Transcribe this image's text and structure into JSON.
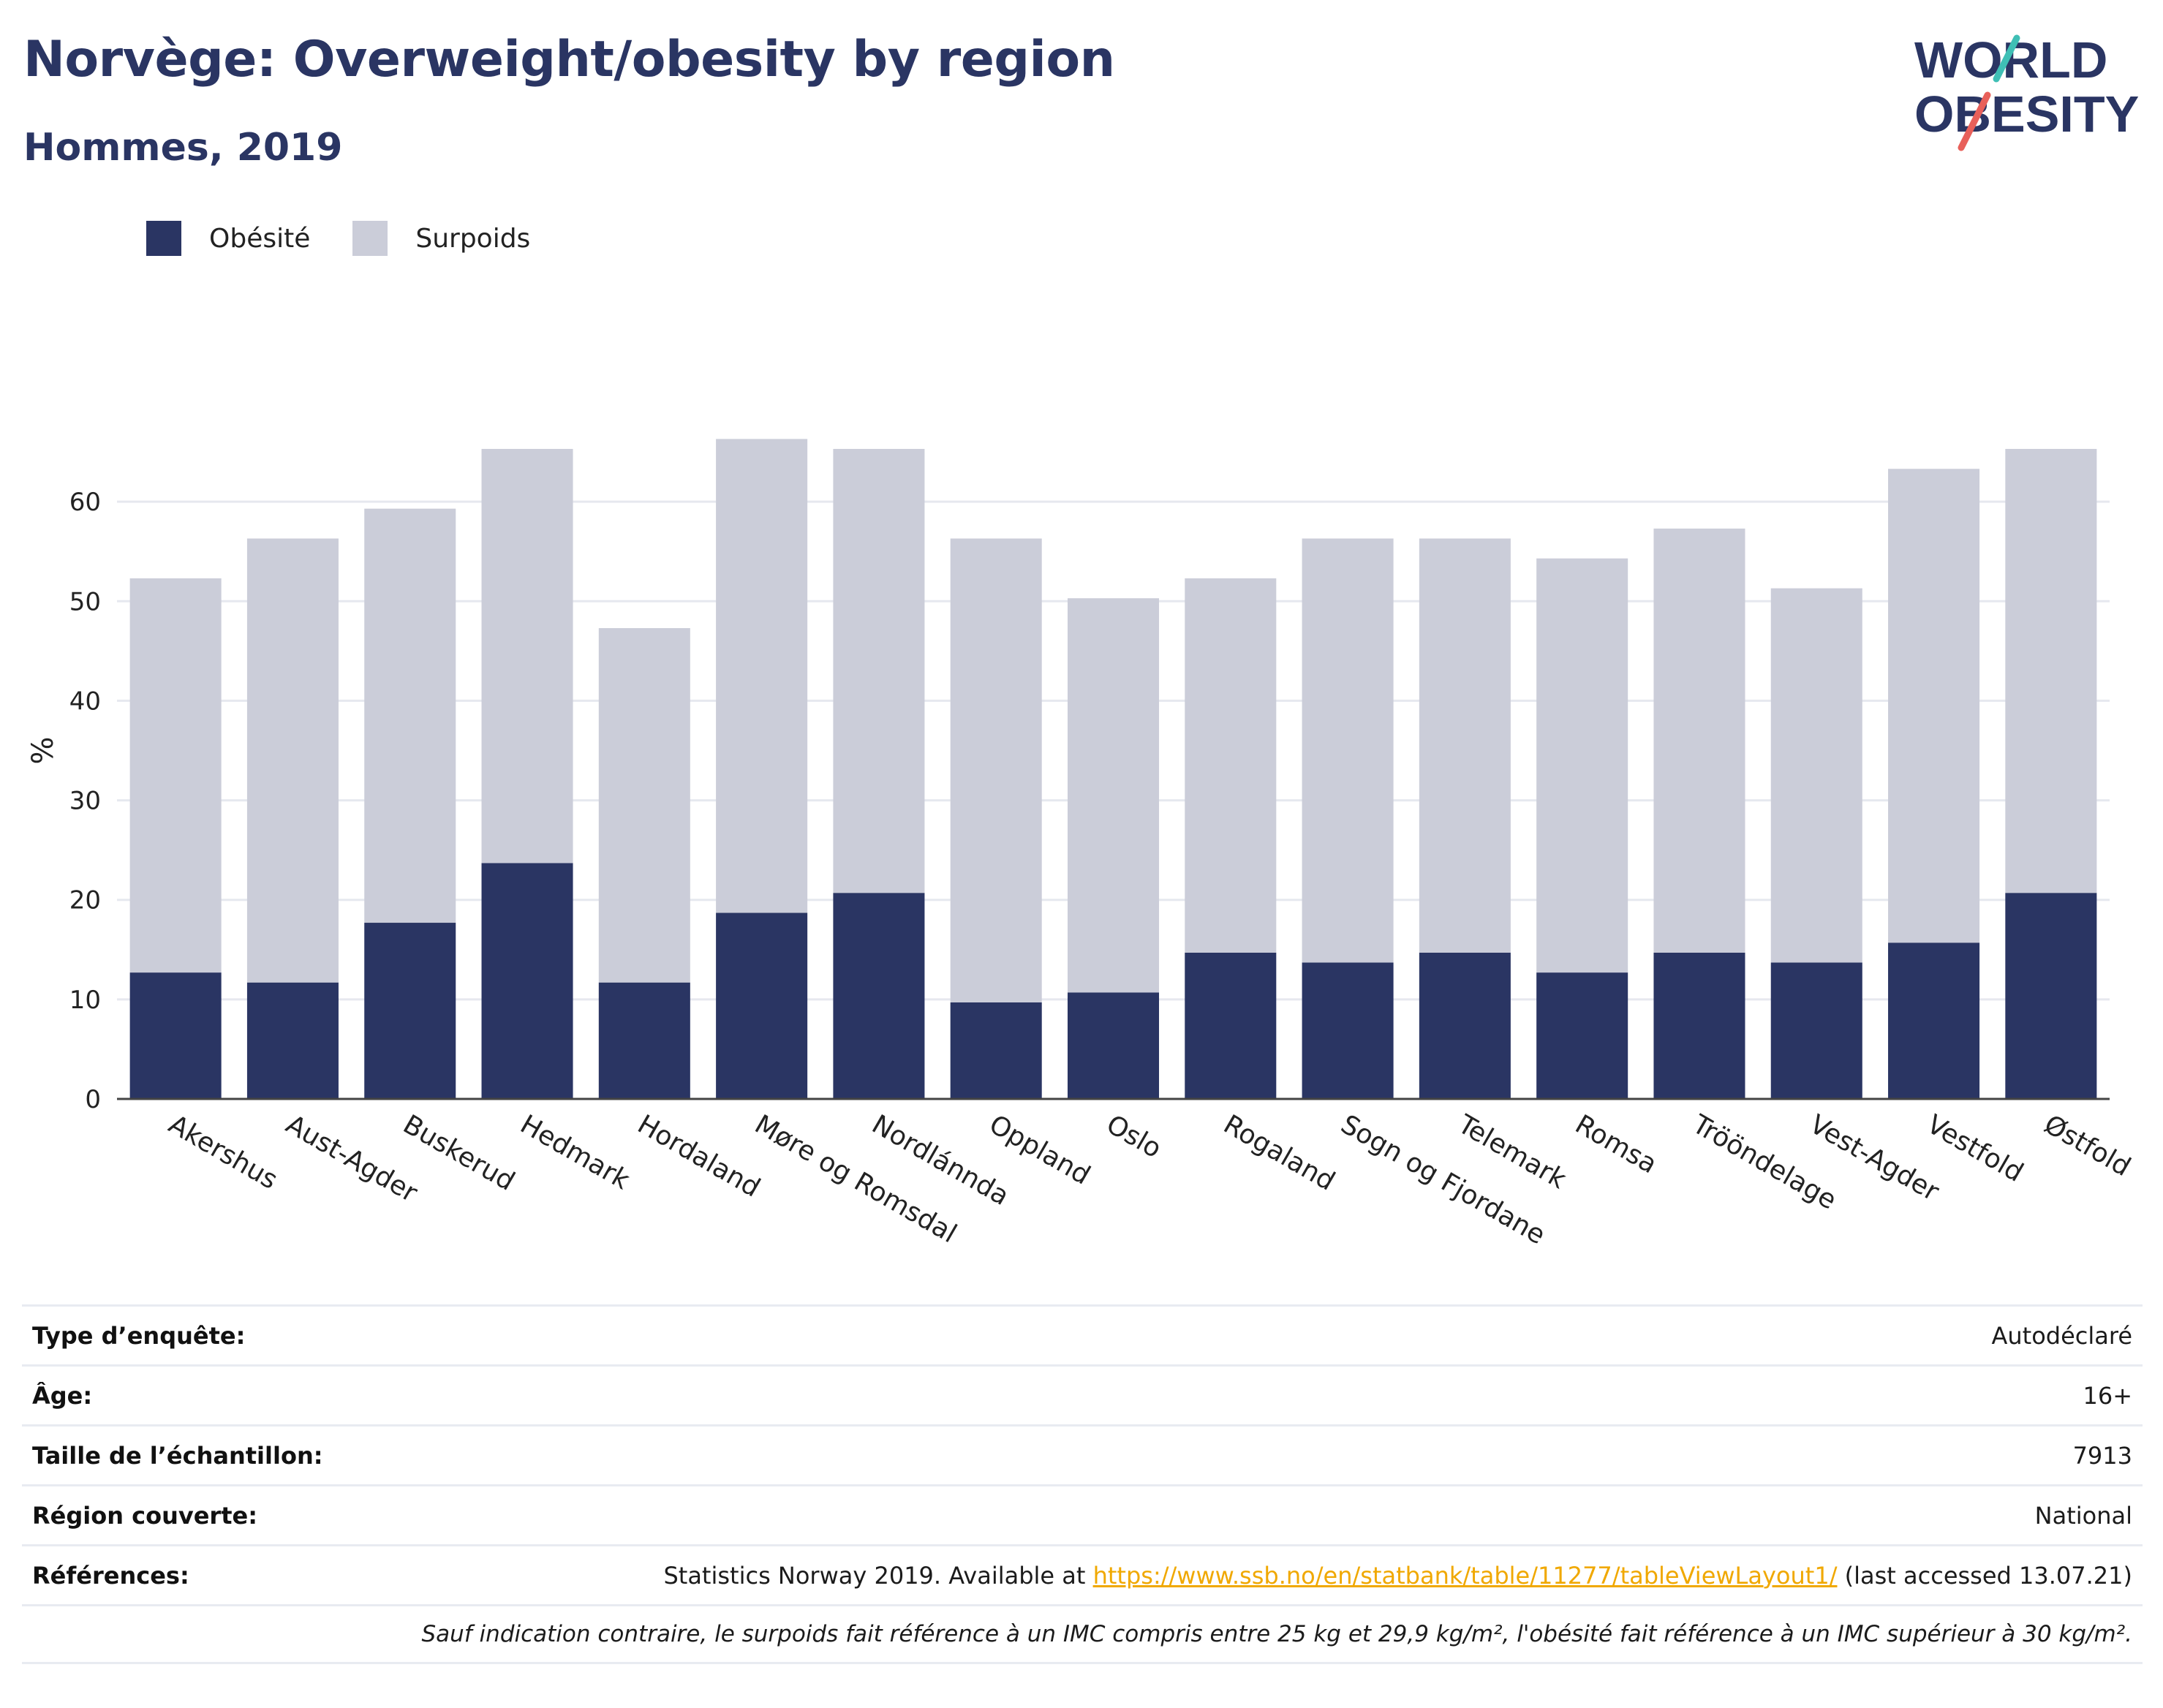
{
  "header": {
    "title": "Norvège: Overweight/obesity by region",
    "subtitle": "Hommes, 2019"
  },
  "logo": {
    "line1": "WORLD",
    "line2": "OBESITY"
  },
  "colors": {
    "obesity": "#2a3563",
    "overweight": "#cbcdd9",
    "accent_teal": "#3fbfb5",
    "accent_red": "#e8605a",
    "link": "#f0a800"
  },
  "chart_data": {
    "type": "bar",
    "stacked": true,
    "categories": [
      "Akershus",
      "Aust-Agder",
      "Buskerud",
      "Hedmark",
      "Hordaland",
      "Møre og Romsdal",
      "Nordlánnda",
      "Oppland",
      "Oslo",
      "Rogaland",
      "Sogn og Fjordane",
      "Telemark",
      "Romsa",
      "Trööndelage",
      "Vest-Agder",
      "Vestfold",
      "Østfold"
    ],
    "series": [
      {
        "name": "Obésité",
        "values": [
          12.7,
          11.7,
          17.7,
          23.7,
          11.7,
          18.7,
          20.7,
          9.7,
          10.7,
          14.7,
          13.7,
          14.7,
          12.7,
          14.7,
          13.7,
          15.7,
          20.7
        ]
      },
      {
        "name": "Surpoids",
        "values": [
          39.6,
          44.6,
          41.6,
          41.6,
          35.6,
          47.6,
          44.6,
          46.6,
          39.6,
          37.6,
          42.6,
          41.6,
          41.6,
          42.6,
          37.6,
          47.6,
          44.6
        ]
      }
    ],
    "ylabel": "%",
    "ylim": [
      0,
      70
    ],
    "yticks": [
      0,
      10,
      20,
      30,
      40,
      50,
      60
    ],
    "grid": true,
    "legend_position": "top-left"
  },
  "info": {
    "survey_type": {
      "label": "Type d’enquête:",
      "value": "Autodéclaré"
    },
    "age": {
      "label": "Âge:",
      "value": "16+"
    },
    "sample_size": {
      "label": "Taille de l’échantillon:",
      "value": "7913"
    },
    "region": {
      "label": "Région couverte:",
      "value": "National"
    },
    "references": {
      "label": "Références:",
      "text_before": "Statistics Norway 2019. Available at ",
      "link": "https://www.ssb.no/en/statbank/table/11277/tableViewLayout1/",
      "text_after": " (last accessed 13.07.21)"
    },
    "note": "Sauf indication contraire, le surpoids fait référence à un IMC compris entre 25 kg et 29,9 kg/m², l'obésité fait référence à un IMC supérieur à 30 kg/m²."
  }
}
